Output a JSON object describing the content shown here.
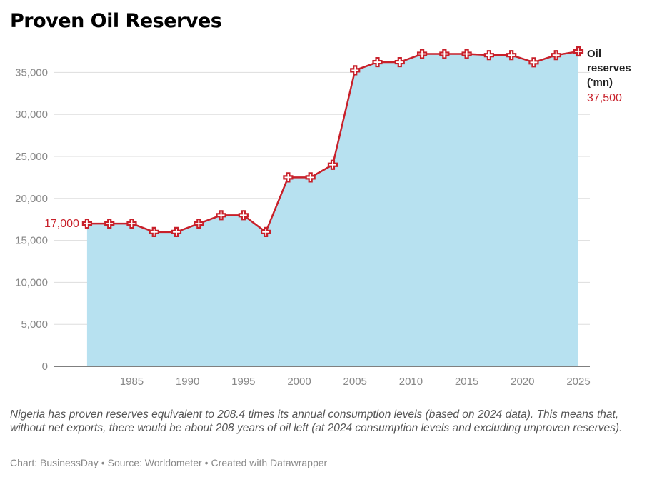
{
  "title": "Proven Oil Reserves",
  "note": "Nigeria has proven reserves equivalent to 208.4 times its annual consumption levels (based on 2024 data). This means that, without net exports, there would be about 208 years of oil left (at 2024 consumption levels and excluding unproven reserves).",
  "credits": {
    "chart": "Chart: BusinessDay",
    "source": "Source: Worldometer",
    "tool": "Created with Datawrapper",
    "separator": "•"
  },
  "colors": {
    "line": "#c8202a",
    "area": "#b7e1f0",
    "grid": "#dddddd",
    "axis": "#333333",
    "tick_text": "#888888"
  },
  "chart_data": {
    "type": "area",
    "title": "Proven Oil Reserves",
    "xlabel": "",
    "ylabel": "",
    "xlim": [
      1978,
      2025
    ],
    "ylim": [
      0,
      37500
    ],
    "grid": true,
    "x_ticks": [
      1985,
      1990,
      1995,
      2000,
      2005,
      2010,
      2015,
      2020,
      2025
    ],
    "y_ticks": [
      0,
      5000,
      10000,
      15000,
      20000,
      25000,
      30000,
      35000
    ],
    "y_tick_labels": [
      "0",
      "5,000",
      "10,000",
      "15,000",
      "20,000",
      "25,000",
      "30,000",
      "35,000"
    ],
    "series": [
      {
        "name": "Oil reserves ('mn)",
        "x": [
          1981,
          1983,
          1985,
          1987,
          1989,
          1991,
          1993,
          1995,
          1997,
          1999,
          2001,
          2003,
          2005,
          2007,
          2009,
          2011,
          2013,
          2015,
          2017,
          2019,
          2021,
          2023,
          2025
        ],
        "values": [
          17000,
          17000,
          17000,
          16000,
          16000,
          17000,
          18000,
          18000,
          16000,
          22500,
          22500,
          24000,
          35255,
          36220,
          36220,
          37200,
          37200,
          37200,
          37060,
          37060,
          36200,
          37060,
          37500
        ]
      }
    ],
    "annotations": {
      "start_label": "17,000",
      "end_series_label_lines": [
        "Oil",
        "reserves",
        "('mn)"
      ],
      "end_value_label": "37,500"
    }
  }
}
